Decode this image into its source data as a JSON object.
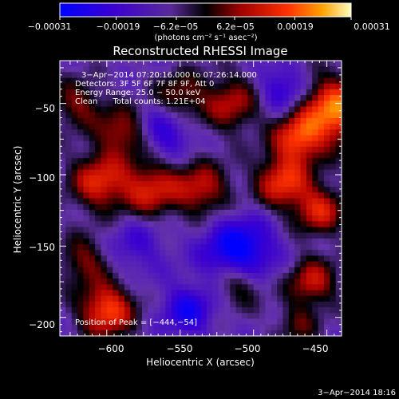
{
  "chart_data": {
    "type": "heatmap",
    "title": "Reconstructed RHESSI Image",
    "xlabel": "Heliocentric X (arcsec)",
    "ylabel": "Heliocentric Y (arcsec)",
    "xlim": [
      -632,
      -440
    ],
    "ylim": [
      -213,
      -20
    ],
    "x_ticks": [
      -600,
      -550,
      -500,
      -450
    ],
    "x_tick_labels": [
      "−600",
      "−550",
      "−500",
      "−450"
    ],
    "y_ticks": [
      -50,
      -100,
      -150,
      -200
    ],
    "y_tick_labels": [
      "−50",
      "−100",
      "−150",
      "−200"
    ],
    "colorbar": {
      "range": [
        -0.00031,
        0.00031
      ],
      "tick_labels": [
        "−0.00031",
        "−0.00019",
        "−6.2e−05",
        "6.2e−05",
        "0.00019",
        "0.00031"
      ],
      "unit_label": "(photons cm⁻² s⁻¹ asec⁻²)"
    },
    "annotations": {
      "time": "3−Apr−2014 07:20:16.000 to 07:26:14.000",
      "detectors": "Detectors: 3F 5F 6F 7F 8F 9F, Att 0",
      "energy": "Energy Range: 25.0 − 50.0 keV",
      "clean": "Clean      Total counts: 1.21E+04",
      "peak": "Position of Peak = [−444,−54]"
    },
    "blobs": [
      {
        "x": -445,
        "y": -55,
        "amp": 1.0,
        "r": 16
      },
      {
        "x": -470,
        "y": -75,
        "amp": 0.75,
        "r": 12
      },
      {
        "x": -515,
        "y": -50,
        "amp": 0.55,
        "r": 14
      },
      {
        "x": -550,
        "y": -45,
        "amp": 0.45,
        "r": 12
      },
      {
        "x": -590,
        "y": -70,
        "amp": 0.55,
        "r": 12
      },
      {
        "x": -620,
        "y": -50,
        "amp": 0.45,
        "r": 12
      },
      {
        "x": -605,
        "y": -105,
        "amp": 0.7,
        "r": 14
      },
      {
        "x": -570,
        "y": -110,
        "amp": 0.65,
        "r": 14
      },
      {
        "x": -535,
        "y": -110,
        "amp": 0.6,
        "r": 13
      },
      {
        "x": -480,
        "y": -105,
        "amp": 0.75,
        "r": 13
      },
      {
        "x": -455,
        "y": -125,
        "amp": 0.65,
        "r": 12
      },
      {
        "x": -510,
        "y": -155,
        "amp": -0.85,
        "r": 16
      },
      {
        "x": -560,
        "y": -70,
        "amp": -0.45,
        "r": 12
      },
      {
        "x": -480,
        "y": -40,
        "amp": -0.45,
        "r": 12
      },
      {
        "x": -510,
        "y": -175,
        "amp": 0.55,
        "r": 12
      },
      {
        "x": -460,
        "y": -175,
        "amp": 0.6,
        "r": 12
      },
      {
        "x": -600,
        "y": -195,
        "amp": 0.85,
        "r": 13
      },
      {
        "x": -615,
        "y": -160,
        "amp": 0.45,
        "r": 12
      },
      {
        "x": -545,
        "y": -195,
        "amp": -0.55,
        "r": 12
      },
      {
        "x": -580,
        "y": -150,
        "amp": -0.3,
        "r": 14
      },
      {
        "x": -470,
        "y": -205,
        "amp": 0.35,
        "r": 10
      }
    ]
  },
  "footer": {
    "date_stamp": "3−Apr−2014 18:16"
  }
}
